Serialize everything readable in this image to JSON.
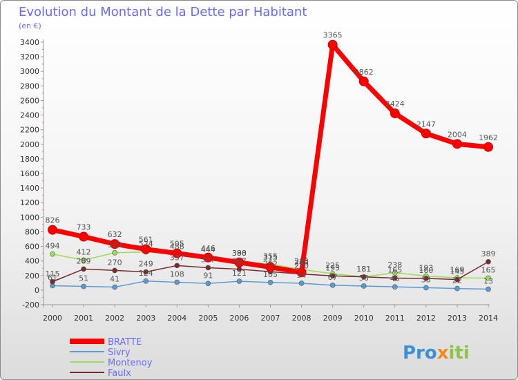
{
  "chart_data": {
    "type": "line",
    "title": "Evolution du Montant de la Dette par Habitant",
    "subtitle": "(en €)",
    "xlabel": "",
    "ylabel": "",
    "x": [
      "2000",
      "2001",
      "2002",
      "2003",
      "2004",
      "2005",
      "2006",
      "2007",
      "2008",
      "2009",
      "2010",
      "2011",
      "2012",
      "2013",
      "2014"
    ],
    "ylim": [
      -200,
      3400
    ],
    "yticks": [
      -200,
      0,
      200,
      400,
      600,
      800,
      1000,
      1200,
      1400,
      1600,
      1800,
      2000,
      2200,
      2400,
      2600,
      2800,
      3000,
      3200,
      3400
    ],
    "grid": false,
    "legend_position": "bottom-left",
    "series": [
      {
        "name": "BRATTE",
        "color": "#ff0000",
        "values": [
          826,
          733,
          632,
          561,
          505,
          446,
          380,
          315,
          243,
          3365,
          2862,
          2424,
          2147,
          2004,
          1962
        ]
      },
      {
        "name": "Sivry",
        "color": "#5b9bd5",
        "values": [
          61,
          51,
          41,
          124,
          108,
          91,
          121,
          105,
          94,
          67,
          56,
          45,
          33,
          22,
          13
        ]
      },
      {
        "name": "Montenoy",
        "color": "#99dd55",
        "values": [
          494,
          412,
          512,
          524,
          488,
          444,
          398,
          355,
          283,
          225,
          181,
          238,
          193,
          169,
          165
        ]
      },
      {
        "name": "Faulx",
        "color": "#7a2a2a",
        "values": [
          115,
          289,
          270,
          249,
          337,
          307,
          287,
          252,
          220,
          195,
          181,
          165,
          160,
          145,
          389
        ]
      }
    ]
  },
  "logo": {
    "text": "Proxiti"
  }
}
